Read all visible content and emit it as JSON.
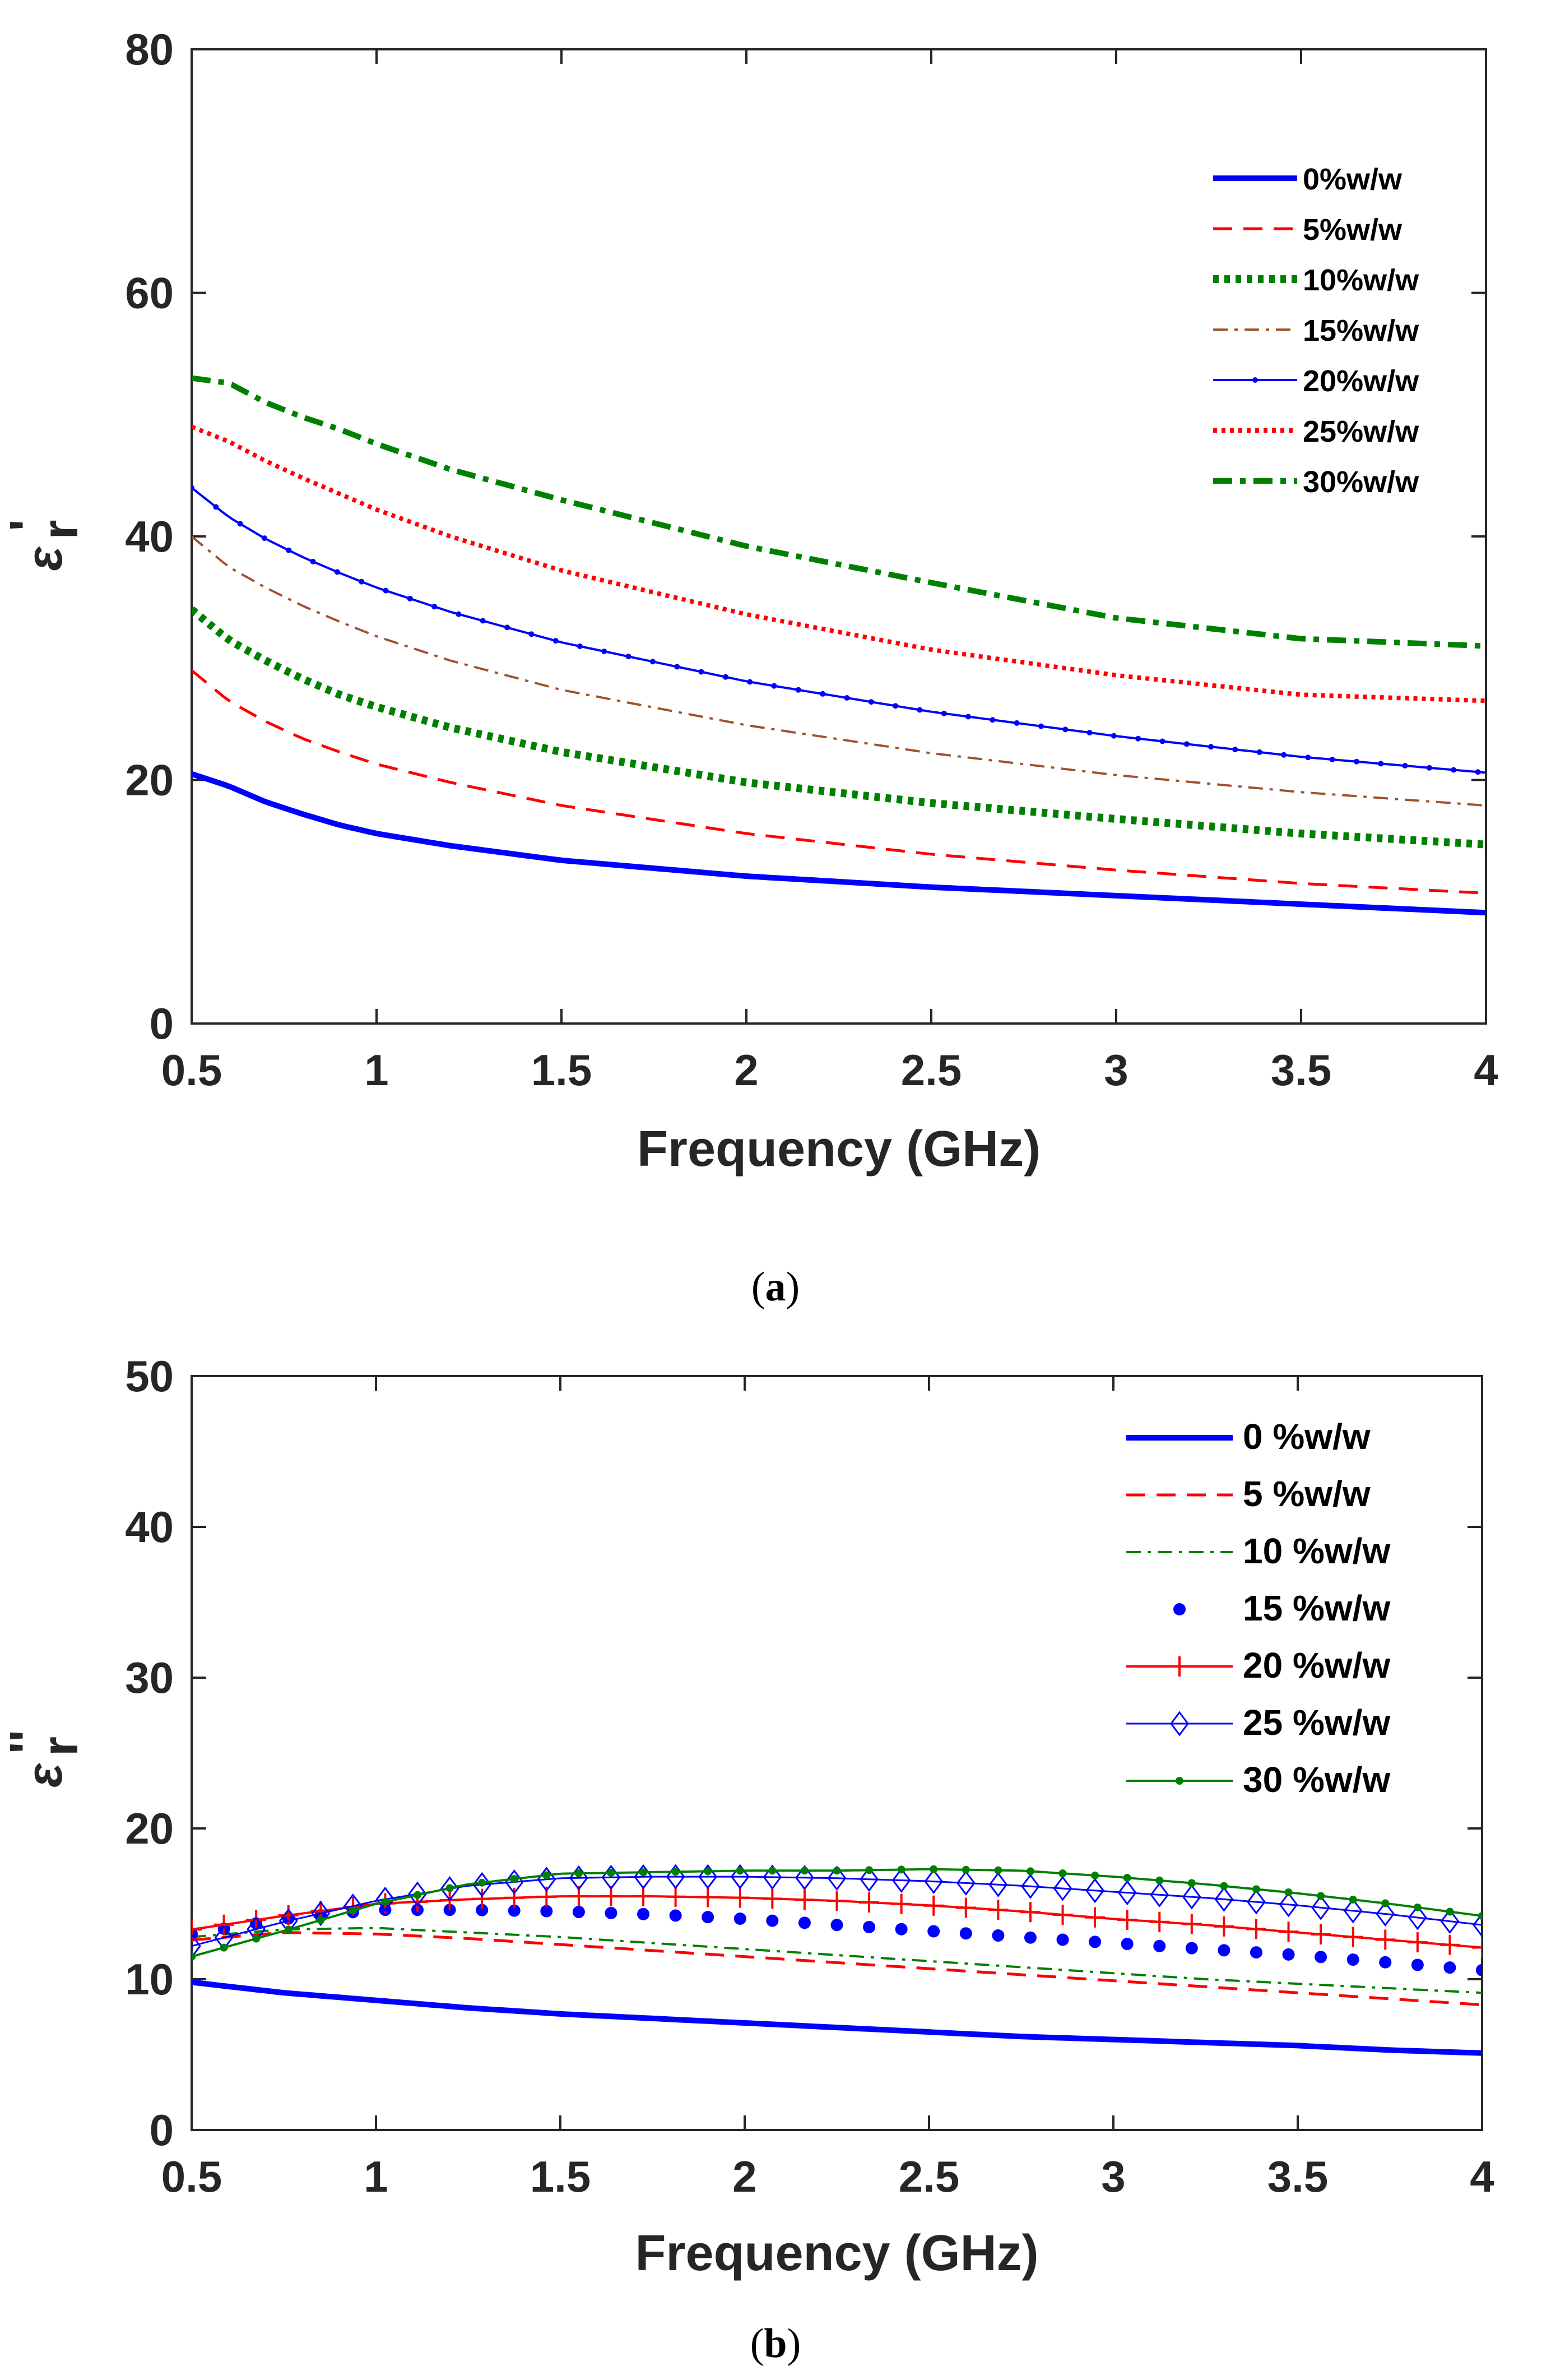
{
  "chart_data": [
    {
      "type": "line",
      "panel": "a",
      "caption": "(a)",
      "caption_letter": "a",
      "xlabel": "Frequency (GHz)",
      "ylabel_symbol": "ε",
      "ylabel_sub": "r",
      "ylabel_sup": "'",
      "xlim": [
        0.5,
        4
      ],
      "ylim": [
        0,
        80
      ],
      "xticks": [
        0.5,
        1,
        1.5,
        2,
        2.5,
        3,
        3.5,
        4
      ],
      "xtick_labels": [
        "0.5",
        "1",
        "1.5",
        "2",
        "2.5",
        "3",
        "3.5",
        "4"
      ],
      "yticks": [
        0,
        20,
        40,
        60,
        80
      ],
      "ytick_labels": [
        "0",
        "20",
        "40",
        "60",
        "80"
      ],
      "grid": false,
      "legend_position": "top-right",
      "x": [
        0.5,
        0.6,
        0.7,
        0.8,
        0.9,
        1.0,
        1.2,
        1.5,
        2.0,
        2.5,
        3.0,
        3.5,
        4.0
      ],
      "series": [
        {
          "name": "0%w/w",
          "color": "#0000ff",
          "style": "solid",
          "values": [
            20.5,
            19.5,
            18.2,
            17.2,
            16.3,
            15.6,
            14.6,
            13.4,
            12.1,
            11.2,
            10.5,
            9.8,
            9.1
          ]
        },
        {
          "name": "5%w/w",
          "color": "#ff0000",
          "style": "dashed",
          "values": [
            29.0,
            26.5,
            24.8,
            23.4,
            22.3,
            21.3,
            19.8,
            17.9,
            15.6,
            13.9,
            12.6,
            11.5,
            10.7
          ]
        },
        {
          "name": "10%w/w",
          "color": "#008000",
          "style": "dotted-thick",
          "values": [
            34.0,
            31.5,
            29.8,
            28.3,
            27.0,
            26.0,
            24.3,
            22.3,
            19.8,
            18.1,
            16.8,
            15.6,
            14.7
          ]
        },
        {
          "name": "15%w/w",
          "color": "#a0522d",
          "style": "dashdot",
          "values": [
            40.0,
            37.5,
            35.8,
            34.3,
            33.0,
            31.8,
            29.8,
            27.4,
            24.5,
            22.2,
            20.4,
            19.0,
            17.9
          ]
        },
        {
          "name": "20%w/w",
          "color": "#0000ff",
          "style": "solid-marker",
          "values": [
            44.0,
            41.6,
            39.8,
            38.3,
            37.0,
            35.8,
            33.8,
            31.3,
            28.1,
            25.6,
            23.6,
            21.9,
            20.6
          ]
        },
        {
          "name": "25%w/w",
          "color": "#ff0000",
          "style": "dotted",
          "values": [
            49.0,
            47.8,
            46.2,
            44.8,
            43.5,
            42.2,
            40.0,
            37.2,
            33.6,
            30.7,
            28.6,
            27.0,
            26.5
          ]
        },
        {
          "name": "30%w/w",
          "color": "#008000",
          "style": "dashdot-thick",
          "values": [
            53.0,
            52.6,
            51.0,
            49.8,
            48.8,
            47.6,
            45.5,
            43.0,
            39.2,
            36.2,
            33.3,
            31.6,
            31.0
          ]
        }
      ]
    },
    {
      "type": "line",
      "panel": "b",
      "caption": "(b)",
      "caption_letter": "b",
      "xlabel": "Frequency (GHz)",
      "ylabel_symbol": "ε",
      "ylabel_sub": "r",
      "ylabel_sup": "''",
      "xlim": [
        0.5,
        4
      ],
      "ylim": [
        0,
        50
      ],
      "xticks": [
        0.5,
        1,
        1.5,
        2,
        2.5,
        3,
        3.5,
        4
      ],
      "xtick_labels": [
        "0.5",
        "1",
        "1.5",
        "2",
        "2.5",
        "3",
        "3.5",
        "4"
      ],
      "yticks": [
        0,
        10,
        20,
        30,
        40,
        50
      ],
      "ytick_labels": [
        "0",
        "10",
        "20",
        "30",
        "40",
        "50"
      ],
      "grid": false,
      "legend_position": "top-right",
      "x": [
        0.5,
        0.75,
        1.0,
        1.25,
        1.5,
        1.75,
        2.0,
        2.25,
        2.5,
        2.75,
        3.0,
        3.25,
        3.5,
        3.75,
        4.0
      ],
      "series": [
        {
          "name": "0 %w/w",
          "color": "#0000ff",
          "style": "solid",
          "values": [
            9.8,
            9.1,
            8.6,
            8.1,
            7.7,
            7.4,
            7.1,
            6.8,
            6.5,
            6.2,
            6.0,
            5.8,
            5.6,
            5.3,
            5.1
          ]
        },
        {
          "name": "5 %w/w",
          "color": "#ff0000",
          "style": "dashed",
          "values": [
            12.6,
            13.1,
            13.0,
            12.7,
            12.3,
            11.9,
            11.5,
            11.1,
            10.7,
            10.3,
            9.9,
            9.5,
            9.1,
            8.7,
            8.3
          ]
        },
        {
          "name": "10 %w/w",
          "color": "#008000",
          "style": "dashdot",
          "values": [
            12.8,
            13.3,
            13.4,
            13.1,
            12.8,
            12.4,
            12.0,
            11.6,
            11.2,
            10.8,
            10.4,
            10.0,
            9.7,
            9.4,
            9.1
          ]
        },
        {
          "name": "15 %w/w",
          "color": "#0000ff",
          "style": "dots",
          "values": [
            13.0,
            14.0,
            14.6,
            14.6,
            14.5,
            14.3,
            14.0,
            13.6,
            13.2,
            12.8,
            12.4,
            12.0,
            11.6,
            11.1,
            10.6
          ]
        },
        {
          "name": "20 %w/w",
          "color": "#ff0000",
          "style": "plus",
          "values": [
            13.3,
            14.2,
            15.0,
            15.3,
            15.5,
            15.5,
            15.4,
            15.2,
            14.9,
            14.5,
            14.0,
            13.6,
            13.1,
            12.6,
            12.1
          ]
        },
        {
          "name": "25 %w/w",
          "color": "#0000ff",
          "style": "diamond",
          "values": [
            12.2,
            13.8,
            15.2,
            16.2,
            16.7,
            16.8,
            16.8,
            16.7,
            16.5,
            16.2,
            15.8,
            15.4,
            14.9,
            14.3,
            13.6
          ]
        },
        {
          "name": "30 %w/w",
          "color": "#008000",
          "style": "star",
          "values": [
            11.5,
            13.2,
            15.0,
            16.3,
            17.0,
            17.1,
            17.2,
            17.2,
            17.3,
            17.2,
            16.8,
            16.3,
            15.7,
            15.0,
            14.2
          ]
        }
      ]
    }
  ]
}
